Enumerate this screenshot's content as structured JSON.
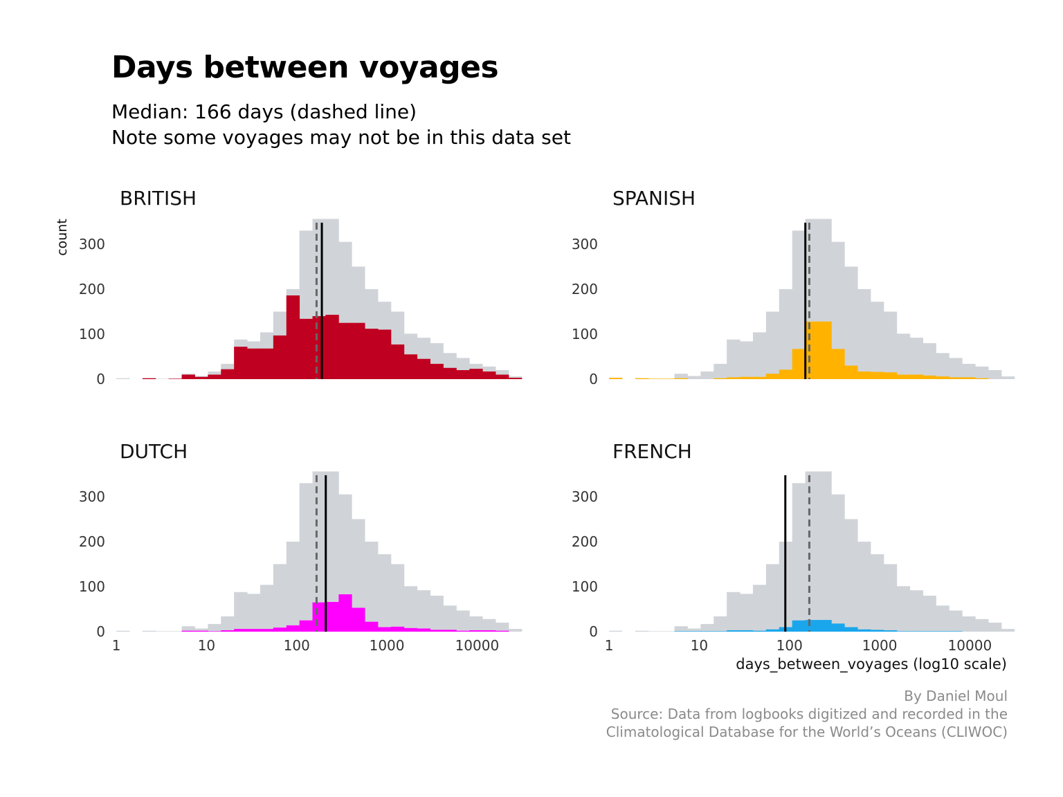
{
  "title": "Days between voyages",
  "subtitle_line1": "Median: 166 days (dashed line)",
  "subtitle_line2": "Note some voyages may not be in this data set",
  "caption_line1": "By Daniel Moul",
  "caption_line2": "Source: Data from logbooks digitized and recorded in the",
  "caption_line3": "Climatological Database for the World’s Oceans (CLIWOC)",
  "colors": {
    "background_bars": "#d0d4d8",
    "british": "#c00020",
    "spanish": "#ffb300",
    "dutch": "#ff00ff",
    "french": "#1aa6ec",
    "median_line": "#000000",
    "overall_median_line": "#666666"
  },
  "chart_data": {
    "type": "histogram",
    "xlabel": "days_between_voyages (log10 scale)",
    "ylabel": "count",
    "x_scale": "log10",
    "x_tick_labels": [
      "1",
      "10",
      "100",
      "1000",
      "10000"
    ],
    "x_ticks": [
      1,
      10,
      100,
      1000,
      10000
    ],
    "xlim": [
      0.93,
      22000
    ],
    "y_tick_labels": [
      "0",
      "100",
      "200",
      "300"
    ],
    "y_ticks": [
      0,
      100,
      200,
      300
    ],
    "ylim": [
      0,
      360
    ],
    "bin_log10_start": 0,
    "bin_log10_width": 0.145,
    "overall_median_days": 166,
    "all_counts": [
      2,
      0,
      2,
      1,
      1,
      12,
      7,
      17,
      34,
      88,
      84,
      104,
      150,
      200,
      330,
      356,
      356,
      305,
      250,
      200,
      172,
      150,
      101,
      92,
      80,
      58,
      47,
      34,
      28,
      20,
      6
    ],
    "panels": [
      {
        "name": "BRITISH",
        "color_key": "british",
        "median_days": 190,
        "counts": [
          0,
          0,
          2,
          0,
          1,
          10,
          5,
          10,
          22,
          72,
          68,
          68,
          97,
          186,
          134,
          140,
          143,
          125,
          125,
          112,
          110,
          77,
          55,
          45,
          34,
          25,
          20,
          23,
          17,
          10,
          3
        ]
      },
      {
        "name": "SPANISH",
        "color_key": "spanish",
        "median_days": 150,
        "counts": [
          3,
          0,
          2,
          1,
          1,
          2,
          0,
          0,
          2,
          4,
          5,
          5,
          12,
          21,
          67,
          128,
          128,
          67,
          30,
          17,
          16,
          15,
          10,
          10,
          8,
          6,
          4,
          4,
          2,
          0,
          0
        ]
      },
      {
        "name": "DUTCH",
        "color_key": "dutch",
        "median_days": 210,
        "counts": [
          0,
          0,
          0,
          0,
          0,
          2,
          2,
          1,
          3,
          6,
          6,
          6,
          9,
          14,
          25,
          65,
          66,
          83,
          53,
          22,
          10,
          11,
          8,
          7,
          4,
          4,
          2,
          3,
          3,
          2,
          0
        ]
      },
      {
        "name": "FRENCH",
        "color_key": "french",
        "median_days": 90,
        "counts": [
          0,
          0,
          0,
          0,
          0,
          1,
          1,
          1,
          1,
          3,
          3,
          2,
          5,
          10,
          25,
          26,
          26,
          18,
          10,
          5,
          4,
          3,
          1,
          1,
          1,
          1,
          1,
          0,
          0,
          0,
          0
        ]
      }
    ]
  }
}
